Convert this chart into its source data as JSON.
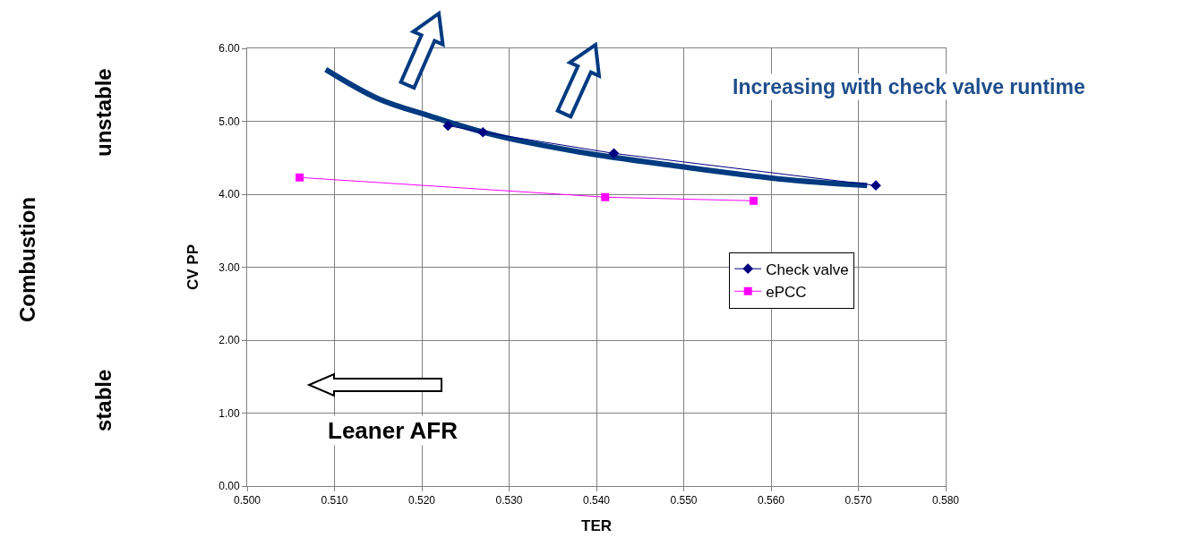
{
  "chart_data": {
    "type": "line",
    "xlabel": "TER",
    "ylabel": "CV PP",
    "xlim": [
      0.5,
      0.58
    ],
    "xticks": [
      {
        "value": 0.5,
        "label": "0.500"
      },
      {
        "value": 0.51,
        "label": "0.510"
      },
      {
        "value": 0.52,
        "label": "0.520"
      },
      {
        "value": 0.53,
        "label": "0.530"
      },
      {
        "value": 0.54,
        "label": "0.540"
      },
      {
        "value": 0.55,
        "label": "0.550"
      },
      {
        "value": 0.56,
        "label": "0.560"
      },
      {
        "value": 0.57,
        "label": "0.570"
      },
      {
        "value": 0.58,
        "label": "0.580"
      }
    ],
    "ylim": [
      0,
      6
    ],
    "yticks": [
      {
        "value": 0,
        "label": "0.00"
      },
      {
        "value": 1,
        "label": "1.00"
      },
      {
        "value": 2,
        "label": "2.00"
      },
      {
        "value": 3,
        "label": "3.00"
      },
      {
        "value": 4,
        "label": "4.00"
      },
      {
        "value": 5,
        "label": "5.00"
      },
      {
        "value": 6,
        "label": "6.00"
      }
    ],
    "grid": true,
    "legend": "right",
    "series": [
      {
        "name": "Check valve",
        "color": "#000080",
        "marker": "diamond",
        "x": [
          0.523,
          0.527,
          0.542,
          0.572
        ],
        "values": [
          4.94,
          4.85,
          4.56,
          4.12
        ]
      },
      {
        "name": "ePCC",
        "color": "#ff00ff",
        "marker": "square",
        "x": [
          0.506,
          0.541,
          0.558
        ],
        "values": [
          4.23,
          3.96,
          3.91
        ]
      },
      {
        "color": "#003a80",
        "marker": "none",
        "x": [
          0.509,
          0.515,
          0.521,
          0.528,
          0.538,
          0.549,
          0.561,
          0.571
        ],
        "values": [
          5.71,
          5.31,
          5.07,
          4.82,
          4.58,
          4.39,
          4.21,
          4.12
        ]
      }
    ],
    "annotations": [
      "Increasing with check valve runtime",
      "Leaner AFR",
      "Combustion",
      "unstable",
      "stable"
    ]
  }
}
